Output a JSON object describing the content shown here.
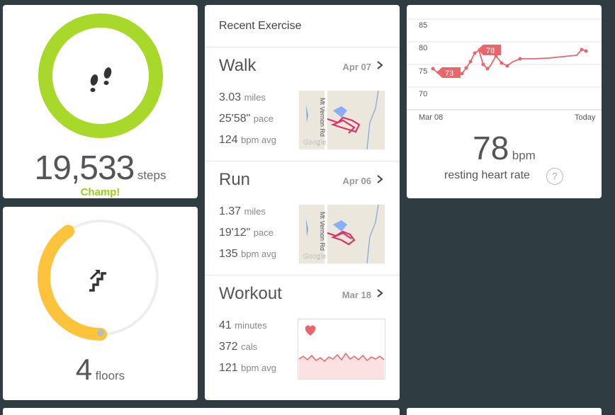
{
  "steps": {
    "value": "19,533",
    "unit": "steps",
    "badge": "Champ!",
    "ring_color": "#a8d92a",
    "progress": 1.0
  },
  "floors": {
    "value": "4",
    "unit": "floors",
    "ring_color": "#fdc33a",
    "progress": 0.4
  },
  "exercise": {
    "header": "Recent Exercise",
    "entries": [
      {
        "title": "Walk",
        "date": "Apr 07",
        "stats": [
          {
            "value": "3.03",
            "unit": "miles"
          },
          {
            "value": "25'58\"",
            "unit": "pace"
          },
          {
            "value": "124",
            "unit": "bpm avg"
          }
        ],
        "map_road": "Mt Vernon Rd",
        "map_brand": "Google"
      },
      {
        "title": "Run",
        "date": "Apr 06",
        "stats": [
          {
            "value": "1.37",
            "unit": "miles"
          },
          {
            "value": "19'12\"",
            "unit": "pace"
          },
          {
            "value": "135",
            "unit": "bpm avg"
          }
        ],
        "map_road": "Mt Vernon Rd",
        "map_brand": "Google"
      },
      {
        "title": "Workout",
        "date": "Mar 18",
        "stats": [
          {
            "value": "41",
            "unit": "minutes"
          },
          {
            "value": "372",
            "unit": "cals"
          },
          {
            "value": "121",
            "unit": "bpm avg"
          }
        ]
      }
    ]
  },
  "heart_rate": {
    "y_ticks": [
      "85",
      "80",
      "75",
      "70"
    ],
    "x_start": "Mar 08",
    "x_end": "Today",
    "value": "78",
    "unit": "bpm",
    "label": "resting heart rate",
    "help": "?",
    "callouts": [
      "73",
      "78"
    ],
    "line_color": "#e9676c"
  }
}
